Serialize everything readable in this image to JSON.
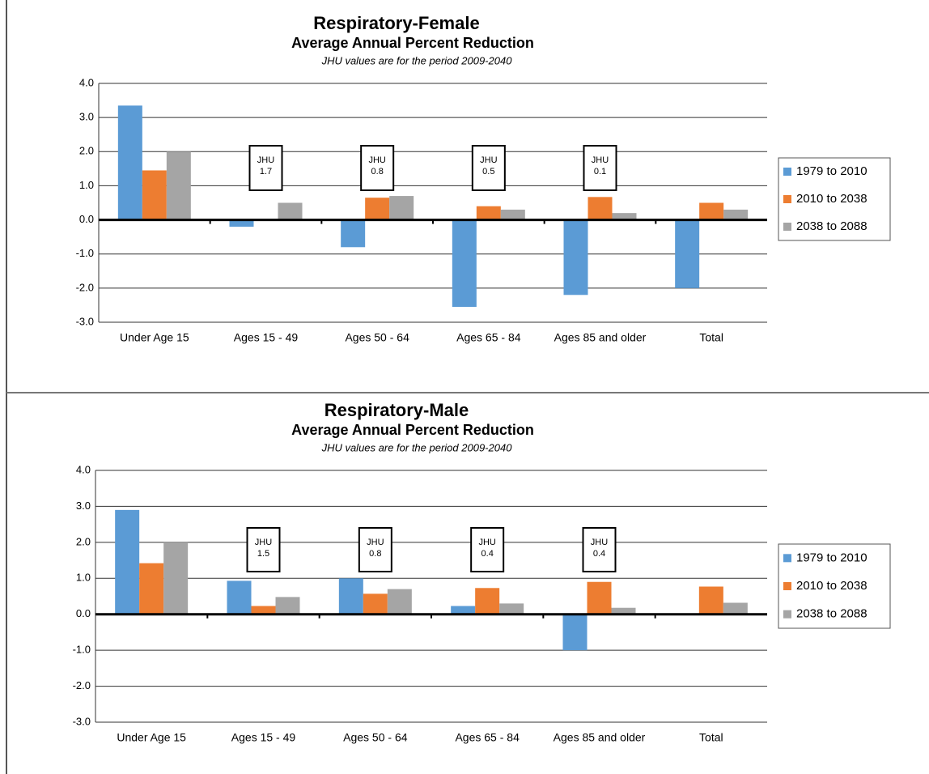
{
  "chart_data": [
    {
      "type": "bar",
      "title": "Respiratory-Female",
      "subtitle": "Average Annual Percent Reduction",
      "note": "JHU values are for the period 2009-2040",
      "categories": [
        "Under Age 15",
        "Ages 15 - 49",
        "Ages 50 - 64",
        "Ages 65 - 84",
        "Ages 85 and older",
        "Total"
      ],
      "series": [
        {
          "name": "1979 to 2010",
          "color": "#5b9bd5",
          "values": [
            3.35,
            -0.2,
            -0.8,
            -2.55,
            -2.2,
            -2.0
          ]
        },
        {
          "name": "2010 to 2038",
          "color": "#ed7d31",
          "values": [
            1.45,
            0,
            0.65,
            0.4,
            0.67,
            0.5
          ]
        },
        {
          "name": "2038 to 2088",
          "color": "#a5a5a5",
          "values": [
            2.0,
            0.5,
            0.7,
            0.3,
            0.2,
            0.3
          ]
        }
      ],
      "jhu_label": "JHU",
      "jhu_values": [
        null,
        1.7,
        0.8,
        0.5,
        0.1,
        null
      ],
      "ylim": [
        -3,
        4
      ],
      "yticks": [
        {
          "value": 4,
          "label": "4.0"
        },
        {
          "value": 3,
          "label": "3.0"
        },
        {
          "value": 2,
          "label": "2.0"
        },
        {
          "value": 1,
          "label": "1.0"
        },
        {
          "value": 0,
          "label": "0.0"
        },
        {
          "value": -1,
          "label": "-1.0"
        },
        {
          "value": -2,
          "label": "-2.0"
        },
        {
          "value": -3,
          "label": "-3.0"
        }
      ],
      "grid": true,
      "legend": "right"
    },
    {
      "type": "bar",
      "title": "Respiratory-Male",
      "subtitle": "Average Annual Percent Reduction",
      "note": "JHU values are for the period 2009-2040",
      "categories": [
        "Under Age 15",
        "Ages 15 - 49",
        "Ages 50 - 64",
        "Ages 65 - 84",
        "Ages 85 and older",
        "Total"
      ],
      "series": [
        {
          "name": "1979 to 2010",
          "color": "#5b9bd5",
          "values": [
            2.9,
            0.93,
            1.0,
            0.23,
            -1.0,
            0
          ]
        },
        {
          "name": "2010 to 2038",
          "color": "#ed7d31",
          "values": [
            1.42,
            0.23,
            0.57,
            0.73,
            0.9,
            0.77
          ]
        },
        {
          "name": "2038 to 2088",
          "color": "#a5a5a5",
          "values": [
            2.0,
            0.48,
            0.7,
            0.3,
            0.18,
            0.32
          ]
        }
      ],
      "jhu_label": "JHU",
      "jhu_values": [
        null,
        1.5,
        0.8,
        0.4,
        0.4,
        null
      ],
      "ylim": [
        -3,
        4
      ],
      "yticks": [
        {
          "value": 4,
          "label": "4.0"
        },
        {
          "value": 3,
          "label": "3.0"
        },
        {
          "value": 2,
          "label": "2.0"
        },
        {
          "value": 1,
          "label": "1.0"
        },
        {
          "value": 0,
          "label": "0.0"
        },
        {
          "value": -1,
          "label": "-1.0"
        },
        {
          "value": -2,
          "label": "-2.0"
        },
        {
          "value": -3,
          "label": "-3.0"
        }
      ],
      "grid": true,
      "legend": "right"
    }
  ]
}
